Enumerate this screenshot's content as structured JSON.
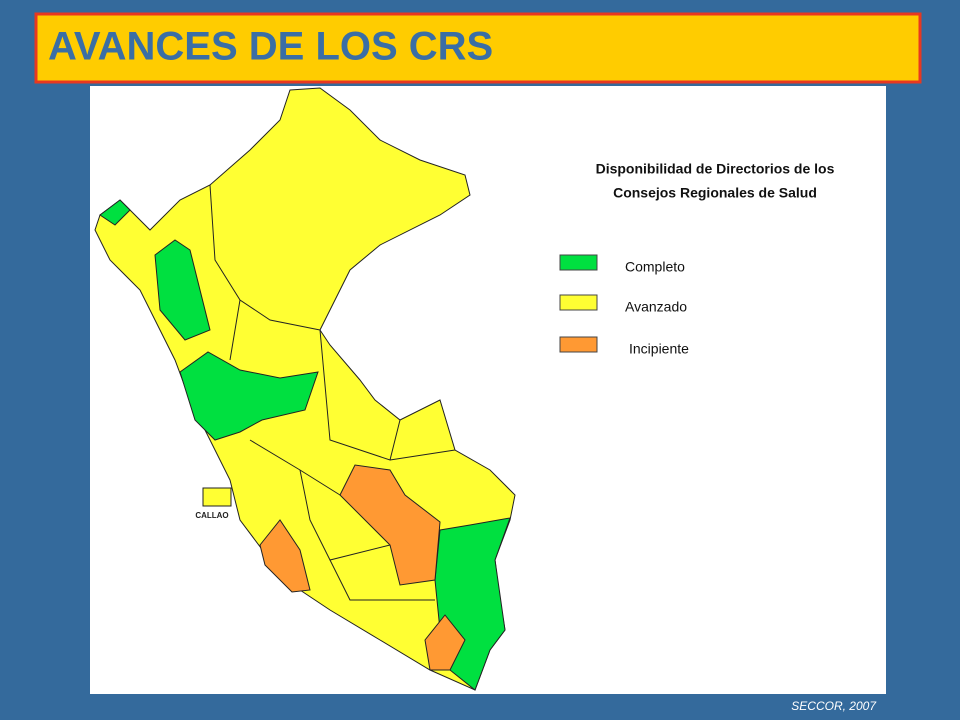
{
  "title": "AVANCES DE LOS CRS",
  "legend": {
    "title": [
      "Disponibilidad de Directorios de los",
      "Consejos Regionales de Salud"
    ],
    "items": [
      {
        "label": "Completo",
        "color": "#00e040"
      },
      {
        "label": "Avanzado",
        "color": "#ffff33"
      },
      {
        "label": "Incipiente",
        "color": "#ff9933"
      }
    ]
  },
  "callao_label": "CALLAO",
  "source": "SECCOR, 2007"
}
